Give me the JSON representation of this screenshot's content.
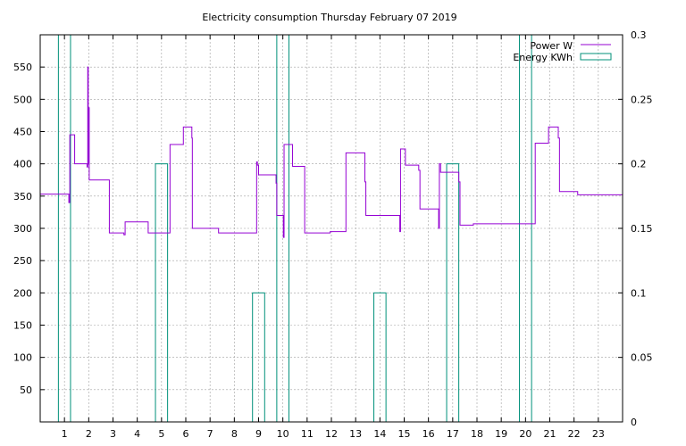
{
  "chart_data": {
    "type": "line",
    "title": "Electricity consumption Thursday February 07 2019",
    "xlabel": "",
    "ylabel": "",
    "xlim": [
      0,
      24
    ],
    "ylim": [
      0,
      600
    ],
    "y2lim": [
      0,
      0.3
    ],
    "x_ticks": [
      1,
      2,
      3,
      4,
      5,
      6,
      7,
      8,
      9,
      10,
      11,
      12,
      13,
      14,
      15,
      16,
      17,
      18,
      19,
      20,
      21,
      22,
      23
    ],
    "x_tick_labels": [
      "1",
      "2",
      "3",
      "4",
      "5",
      "6",
      "7",
      "8",
      "9",
      "10",
      "11",
      "12",
      "13",
      "14",
      "15",
      "16",
      "17",
      "18",
      "19",
      "20",
      "21",
      "22",
      "23"
    ],
    "y_ticks": [
      50,
      100,
      150,
      200,
      250,
      300,
      350,
      400,
      450,
      500,
      550
    ],
    "y_tick_labels": [
      "50",
      "100",
      "150",
      "200",
      "250",
      "300",
      "350",
      "400",
      "450",
      "500",
      "550"
    ],
    "y2_ticks": [
      0,
      0.05,
      0.1,
      0.15,
      0.2,
      0.25,
      0.3
    ],
    "y2_tick_labels": [
      "0",
      "0.05",
      "0.1",
      "0.15",
      "0.2",
      "0.25",
      "0.3"
    ],
    "grid": true,
    "legend_position": "top-right",
    "series": [
      {
        "name": "Power W",
        "axis": "y",
        "style": "step",
        "color": "#9400d3",
        "points": [
          [
            0,
            353
          ],
          [
            1.15,
            353
          ],
          [
            1.18,
            340
          ],
          [
            1.22,
            445
          ],
          [
            1.4,
            445
          ],
          [
            1.42,
            400
          ],
          [
            1.9,
            400
          ],
          [
            1.93,
            395
          ],
          [
            1.96,
            550
          ],
          [
            1.98,
            400
          ],
          [
            2.0,
            487
          ],
          [
            2.02,
            375
          ],
          [
            2.8,
            375
          ],
          [
            2.85,
            293
          ],
          [
            3.4,
            293
          ],
          [
            3.45,
            290
          ],
          [
            3.5,
            310
          ],
          [
            4.4,
            310
          ],
          [
            4.45,
            293
          ],
          [
            5.3,
            293
          ],
          [
            5.35,
            430
          ],
          [
            5.85,
            430
          ],
          [
            5.9,
            457
          ],
          [
            6.2,
            457
          ],
          [
            6.25,
            440
          ],
          [
            6.27,
            300
          ],
          [
            7.3,
            300
          ],
          [
            7.35,
            293
          ],
          [
            8.9,
            293
          ],
          [
            8.92,
            403
          ],
          [
            8.95,
            398
          ],
          [
            9.0,
            383
          ],
          [
            9.7,
            383
          ],
          [
            9.72,
            370
          ],
          [
            9.75,
            320
          ],
          [
            10.0,
            320
          ],
          [
            10.02,
            286
          ],
          [
            10.05,
            430
          ],
          [
            10.35,
            430
          ],
          [
            10.4,
            396
          ],
          [
            10.85,
            396
          ],
          [
            10.9,
            293
          ],
          [
            11.9,
            293
          ],
          [
            11.95,
            295
          ],
          [
            12.55,
            295
          ],
          [
            12.6,
            417
          ],
          [
            13.35,
            417
          ],
          [
            13.38,
            372
          ],
          [
            13.42,
            320
          ],
          [
            14.8,
            320
          ],
          [
            14.82,
            295
          ],
          [
            14.85,
            423
          ],
          [
            15.0,
            423
          ],
          [
            15.05,
            398
          ],
          [
            15.55,
            398
          ],
          [
            15.6,
            390
          ],
          [
            15.65,
            330
          ],
          [
            16.4,
            330
          ],
          [
            16.42,
            300
          ],
          [
            16.45,
            400
          ],
          [
            16.5,
            387
          ],
          [
            17.2,
            387
          ],
          [
            17.25,
            372
          ],
          [
            17.3,
            305
          ],
          [
            17.8,
            305
          ],
          [
            17.85,
            307
          ],
          [
            20.35,
            307
          ],
          [
            20.4,
            432
          ],
          [
            20.9,
            432
          ],
          [
            20.95,
            457
          ],
          [
            21.3,
            457
          ],
          [
            21.35,
            440
          ],
          [
            21.4,
            357
          ],
          [
            22.1,
            357
          ],
          [
            22.15,
            352
          ],
          [
            24,
            352
          ]
        ]
      },
      {
        "name": "Energy KWh",
        "axis": "y2",
        "style": "bars",
        "color": "#00907a",
        "bars": [
          {
            "x0": 0.75,
            "x1": 1.25,
            "value": 0.3
          },
          {
            "x0": 4.75,
            "x1": 5.25,
            "value": 0.2
          },
          {
            "x0": 8.75,
            "x1": 9.25,
            "value": 0.1
          },
          {
            "x0": 9.75,
            "x1": 10.25,
            "value": 0.3
          },
          {
            "x0": 13.75,
            "x1": 14.25,
            "value": 0.1
          },
          {
            "x0": 16.75,
            "x1": 17.25,
            "value": 0.2
          },
          {
            "x0": 19.75,
            "x1": 20.25,
            "value": 0.3
          }
        ]
      }
    ]
  }
}
